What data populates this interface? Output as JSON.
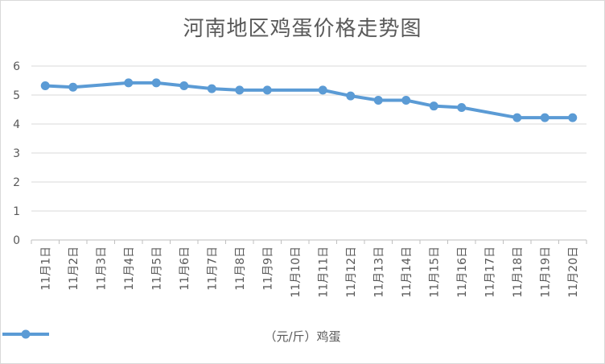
{
  "chart_data": {
    "type": "line",
    "title": "河南地区鸡蛋价格走势图",
    "categories": [
      "11月1日",
      "11月2日",
      "11月3日",
      "11月4日",
      "11月5日",
      "11月6日",
      "11月7日",
      "11月8日",
      "11月9日",
      "11月10日",
      "11月11日",
      "11月12日",
      "11月13日",
      "11月14日",
      "11月15日",
      "11月16日",
      "11月17日",
      "11月18日",
      "11月19日",
      "11月20日"
    ],
    "series": [
      {
        "name": "（元/斤）鸡蛋",
        "values": [
          5.32,
          5.27,
          null,
          5.42,
          5.42,
          5.32,
          5.22,
          5.17,
          5.17,
          null,
          5.17,
          4.97,
          4.82,
          4.82,
          4.62,
          4.57,
          null,
          4.22,
          4.22,
          4.22
        ],
        "color": "#5b9bd5"
      }
    ],
    "ylim": [
      0,
      6
    ],
    "yticks": [
      0,
      1,
      2,
      3,
      4,
      5,
      6
    ],
    "grid": true,
    "legend": "bottom"
  }
}
